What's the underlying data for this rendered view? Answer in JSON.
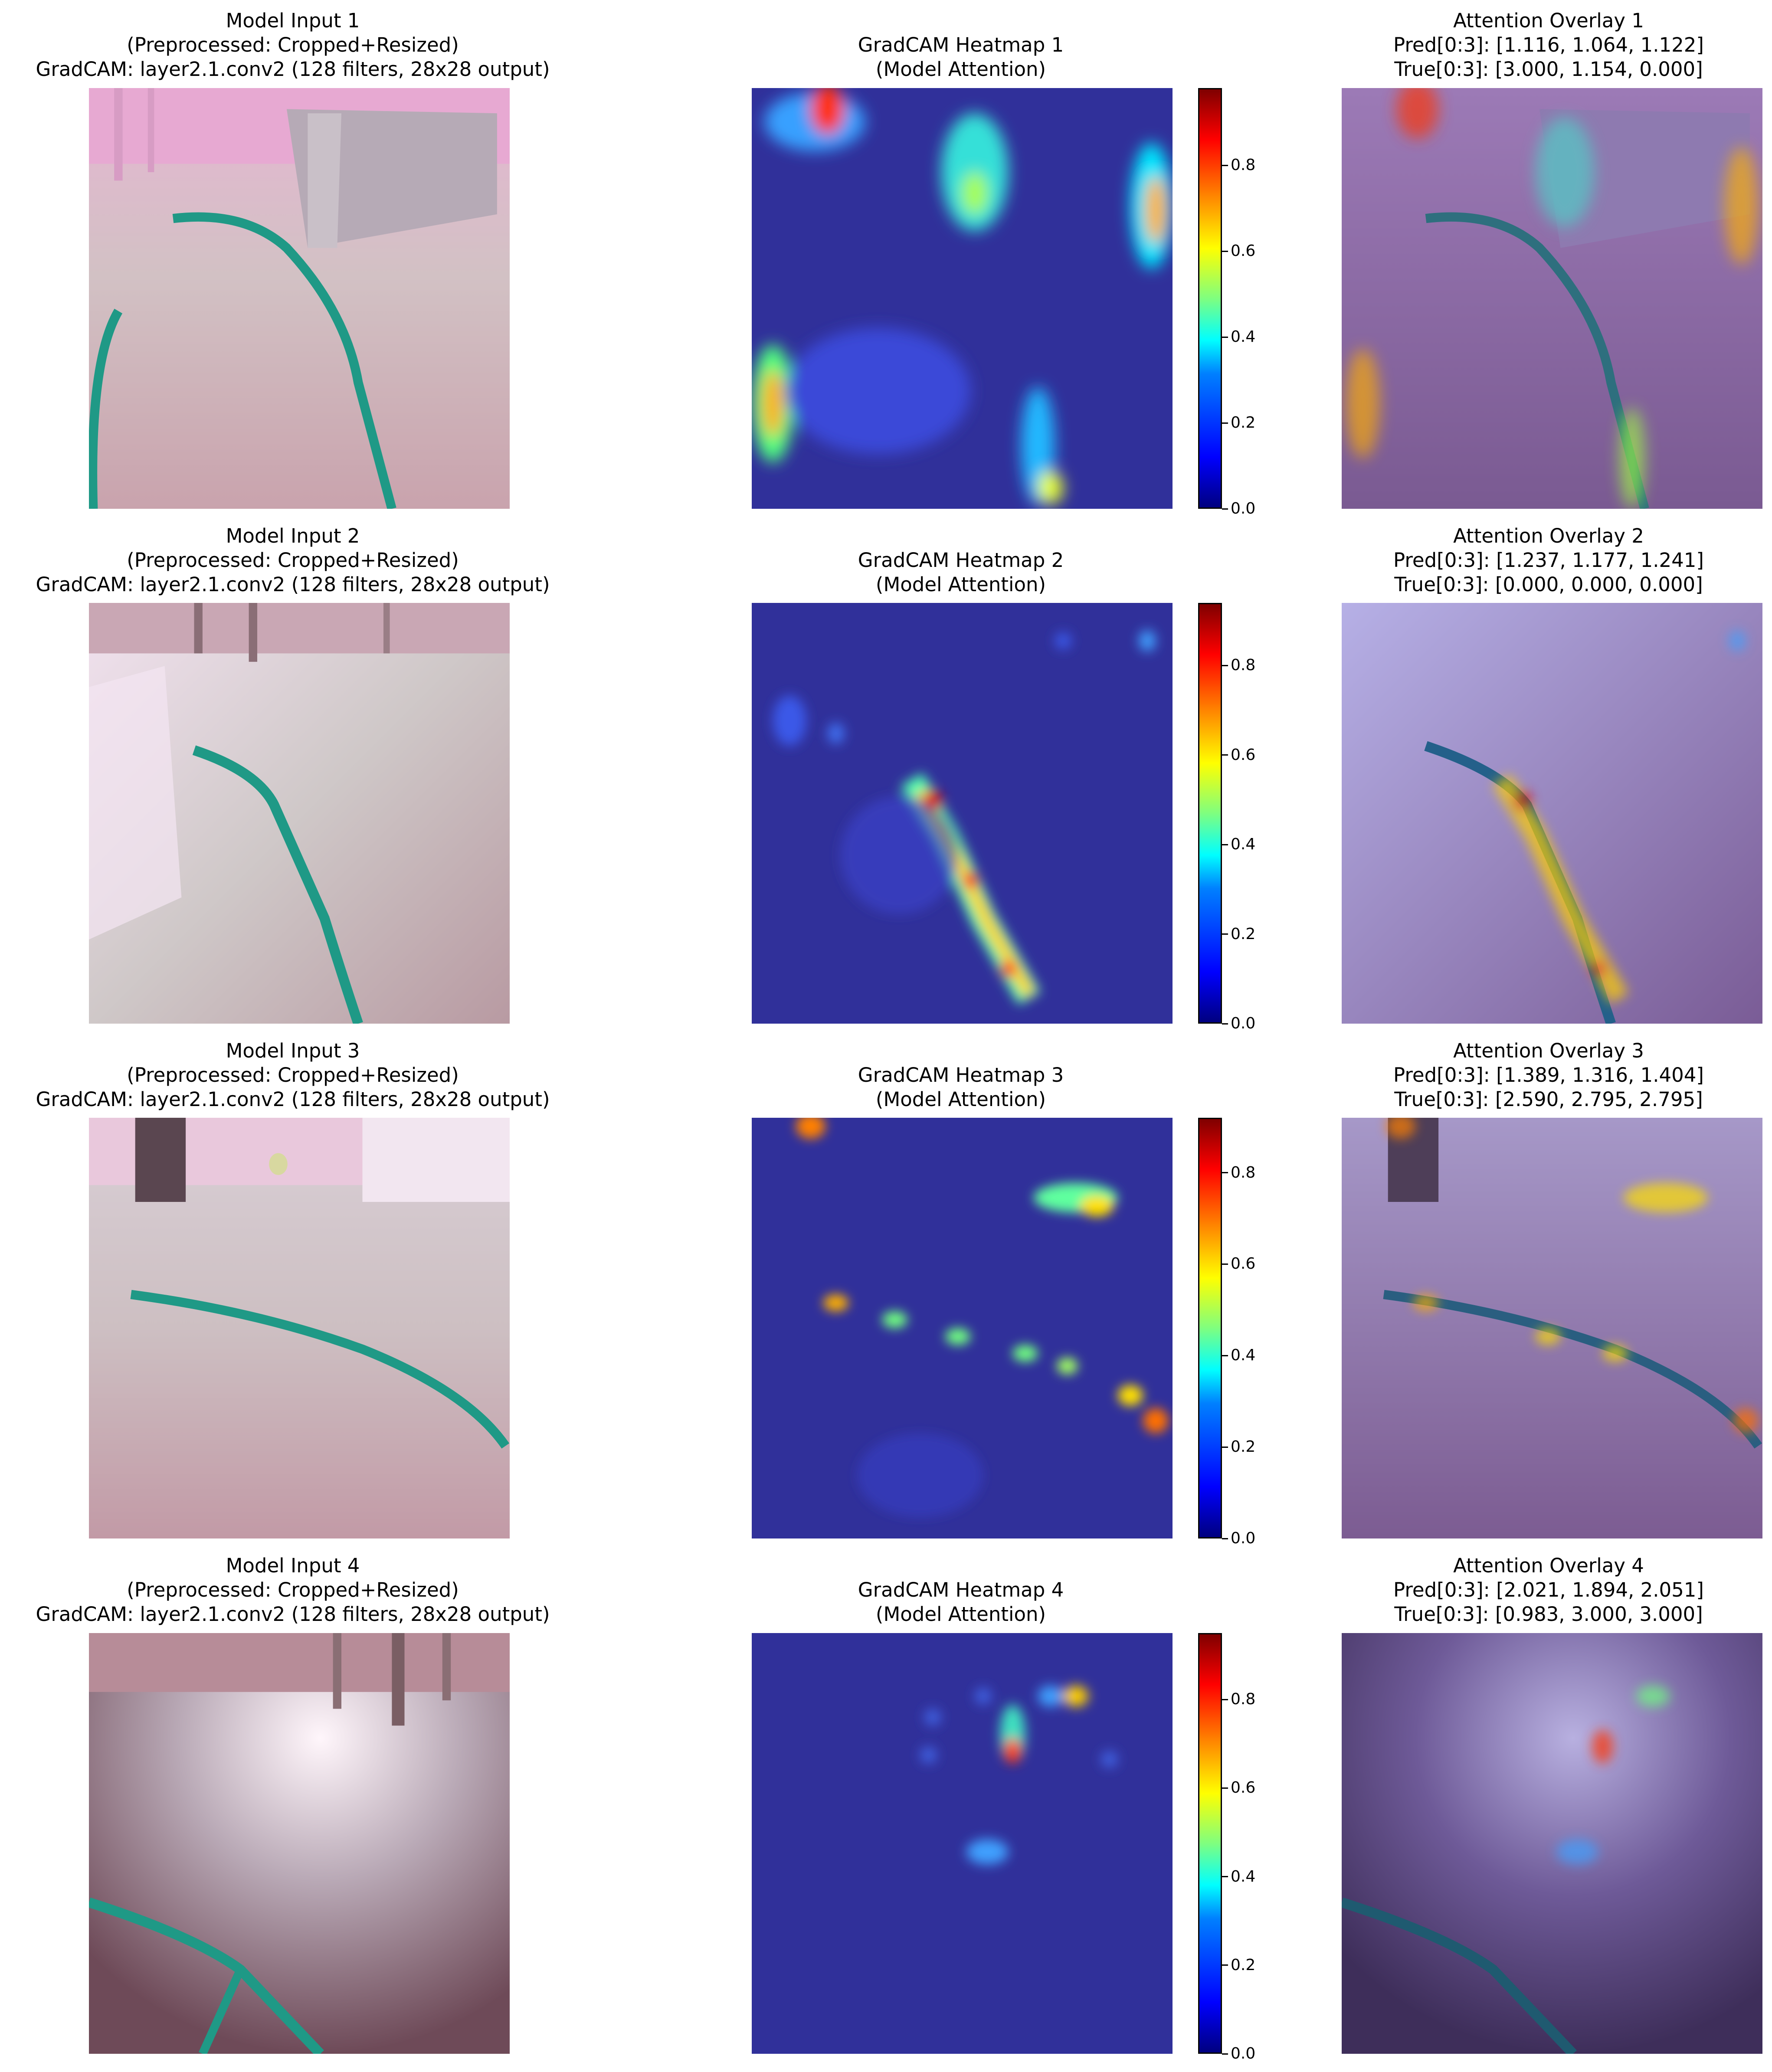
{
  "colors": {
    "frame_tint": "#c79aa9",
    "floor": "#d9c9c4",
    "tape": "#1f9986",
    "heat_bg": "#30309a",
    "overlay_tint": "#6a4f8f"
  },
  "rows": [
    {
      "input_title": "Model Input 1\n(Preprocessed: Cropped+Resized)\nGradCAM: layer2.1.conv2 (128 filters, 28x28 output)",
      "heat_title": "GradCAM Heatmap 1\n(Model Attention)",
      "overlay_title": "Attention Overlay 1\nPred[0:3]: [1.116, 1.064, 1.122]\nTrue[0:3]: [3.000, 1.154, 0.000]",
      "colorbar_ticks": [
        "0.0",
        "0.2",
        "0.4",
        "0.6",
        "0.8"
      ],
      "colorbar_max": 0.98
    },
    {
      "input_title": "Model Input 2\n(Preprocessed: Cropped+Resized)\nGradCAM: layer2.1.conv2 (128 filters, 28x28 output)",
      "heat_title": "GradCAM Heatmap 2\n(Model Attention)",
      "overlay_title": "Attention Overlay 2\nPred[0:3]: [1.237, 1.177, 1.241]\nTrue[0:3]: [0.000, 0.000, 0.000]",
      "colorbar_ticks": [
        "0.0",
        "0.2",
        "0.4",
        "0.6",
        "0.8"
      ],
      "colorbar_max": 0.94
    },
    {
      "input_title": "Model Input 3\n(Preprocessed: Cropped+Resized)\nGradCAM: layer2.1.conv2 (128 filters, 28x28 output)",
      "heat_title": "GradCAM Heatmap 3\n(Model Attention)",
      "overlay_title": "Attention Overlay 3\nPred[0:3]: [1.389, 1.316, 1.404]\nTrue[0:3]: [2.590, 2.795, 2.795]",
      "colorbar_ticks": [
        "0.0",
        "0.2",
        "0.4",
        "0.6",
        "0.8"
      ],
      "colorbar_max": 0.92
    },
    {
      "input_title": "Model Input 4\n(Preprocessed: Cropped+Resized)\nGradCAM: layer2.1.conv2 (128 filters, 28x28 output)",
      "heat_title": "GradCAM Heatmap 4\n(Model Attention)",
      "overlay_title": "Attention Overlay 4\nPred[0:3]: [2.021, 1.894, 2.051]\nTrue[0:3]: [0.983, 3.000, 3.000]",
      "colorbar_ticks": [
        "0.0",
        "0.2",
        "0.4",
        "0.6",
        "0.8"
      ],
      "colorbar_max": 0.95
    }
  ]
}
